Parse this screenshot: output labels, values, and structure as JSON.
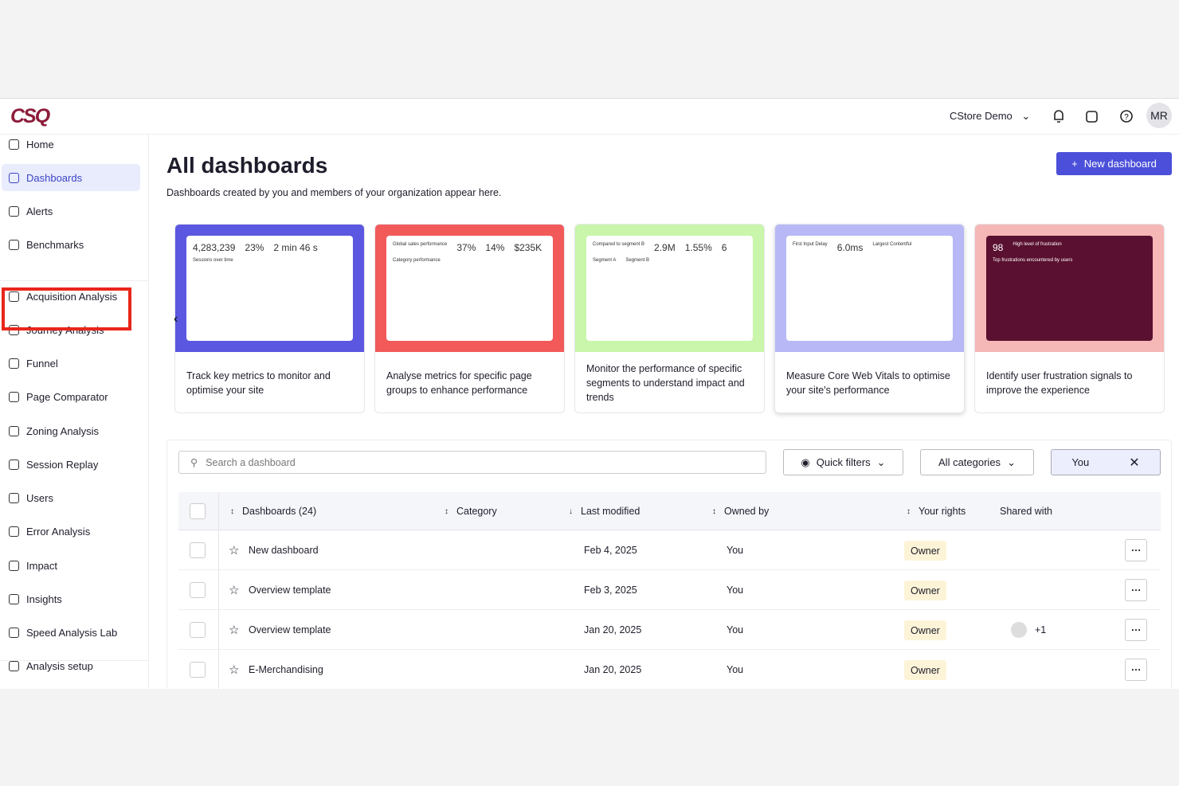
{
  "header": {
    "logo": "CSQ",
    "workspace": "CStore Demo",
    "avatar": "MR"
  },
  "sidebar": {
    "items": [
      "Home",
      "Dashboards",
      "Alerts",
      "Benchmarks",
      "Acquisition Analysis",
      "Journey Analysis",
      "Funnel",
      "Page Comparator",
      "Zoning Analysis",
      "Session Replay",
      "Users",
      "Error Analysis",
      "Impact",
      "Insights",
      "Speed Analysis Lab",
      "Analysis setup"
    ]
  },
  "main": {
    "title": "All dashboards",
    "subtitle": "Dashboards created by you and members of your organization appear here.",
    "new_button": "New dashboard"
  },
  "cards": [
    {
      "description": "Track key metrics to monitor and optimise your site",
      "preview": [
        "4,283,239",
        "23%",
        "2 min 46 s",
        "Sessions over time"
      ]
    },
    {
      "description": "Analyse metrics for specific page groups to enhance performance",
      "preview": [
        "Global sales performance",
        "37%",
        "14%",
        "$235K",
        "Category performance"
      ]
    },
    {
      "description": "Monitor the performance of specific segments to understand impact and trends",
      "preview": [
        "Compared to segment B",
        "2.9M",
        "1.55%",
        "6",
        "Segment A",
        "Segment B"
      ]
    },
    {
      "description": "Measure Core Web Vitals to optimise your site's performance",
      "preview": [
        "First Input Delay",
        "6.0ms",
        "Largest Contentful"
      ]
    },
    {
      "description": "Identify user frustration signals to improve the experience",
      "preview": [
        "98",
        "High level of frustration",
        "Top frustrations encountered by users"
      ]
    }
  ],
  "toolbar": {
    "search_placeholder": "Search a dashboard",
    "quick_filters": "Quick filters",
    "all_categories": "All categories",
    "owner_filter": "You"
  },
  "table": {
    "columns": [
      "Dashboards (24)",
      "Category",
      "Last modified",
      "Owned by",
      "Your rights",
      "Shared with"
    ],
    "rows": [
      {
        "name": "New dashboard",
        "last_modified": "Feb 4, 2025",
        "owned_by": "You",
        "your_rights": "Owner"
      },
      {
        "name": "Overview template",
        "last_modified": "Feb 3, 2025",
        "owned_by": "You",
        "your_rights": "Owner"
      },
      {
        "name": "Overview template",
        "last_modified": "Jan 20, 2025",
        "owned_by": "You",
        "your_rights": "Owner",
        "shared_with": "+1"
      },
      {
        "name": "E-Merchandising",
        "last_modified": "Jan 20, 2025",
        "owned_by": "You",
        "your_rights": "Owner"
      }
    ]
  }
}
